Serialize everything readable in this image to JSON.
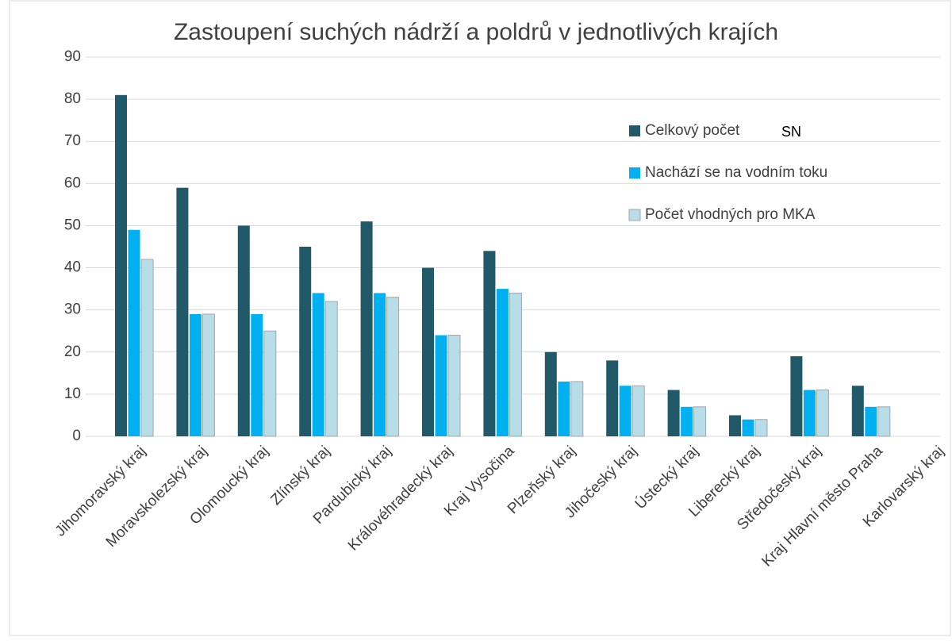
{
  "chart_data": {
    "type": "bar",
    "title": "Zastoupení suchých nádrží a poldrů v jednotlivých krajích",
    "categories": [
      "Jihomoravský kraj",
      "Moravskolezský kraj",
      "Olomoucký kraj",
      "Zlínský kraj",
      "Pardubický kraj",
      "Královéhradecký kraj",
      "Kraj Vysočina",
      "Plzeňský kraj",
      "Jihočeský kraj",
      "Ústecký kraj",
      "Liberecký kraj",
      "Středočeský kraj",
      "Kraj Hlavní město Praha",
      "Karlovarský kraj"
    ],
    "series": [
      {
        "name": "Celkový počet",
        "color": "#215968",
        "values": [
          81,
          59,
          50,
          45,
          51,
          40,
          44,
          20,
          18,
          11,
          5,
          19,
          12,
          0
        ]
      },
      {
        "name": "Nachází se na vodním toku",
        "color": "#00b0f0",
        "values": [
          49,
          29,
          29,
          34,
          34,
          24,
          35,
          13,
          12,
          7,
          4,
          11,
          7,
          0
        ]
      },
      {
        "name": "Počet vhodných pro MKA",
        "color": "#b7dee8",
        "values": [
          42,
          29,
          25,
          32,
          33,
          24,
          34,
          13,
          12,
          7,
          4,
          11,
          7,
          0
        ]
      }
    ],
    "annotation": "SN",
    "ylim": [
      0,
      90
    ],
    "yticks": [
      0,
      10,
      20,
      30,
      40,
      50,
      60,
      70,
      80,
      90
    ],
    "grid": true
  }
}
